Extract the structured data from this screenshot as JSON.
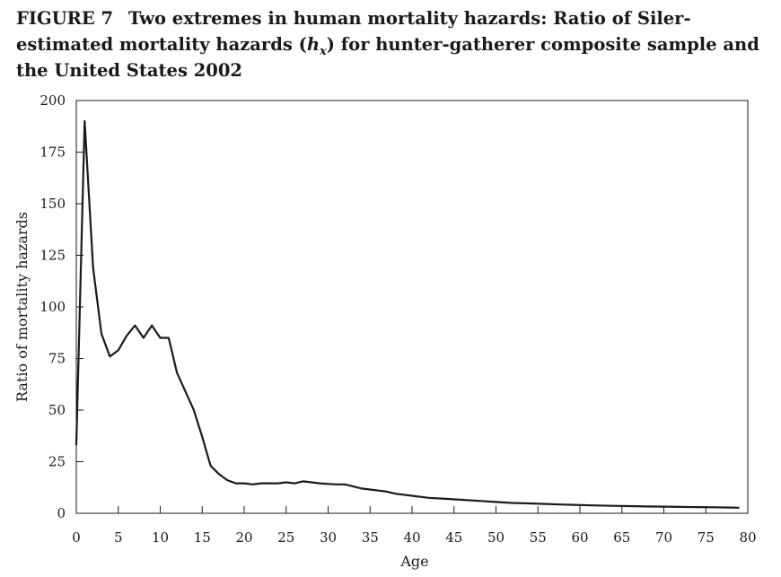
{
  "figure": {
    "label": "FIGURE 7",
    "title_part1": "Two extremes in human mortality hazards: Ratio of Siler-estimated mortality hazards (",
    "title_var": "h",
    "title_sub": "x",
    "title_part2": ") for hunter-gatherer composite sample and the United States 2002"
  },
  "chart_data": {
    "type": "line",
    "xlabel": "Age",
    "ylabel": "Ratio of mortality hazards",
    "xlim": [
      0,
      80
    ],
    "ylim": [
      0,
      200
    ],
    "x_ticks": [
      0,
      5,
      10,
      15,
      20,
      25,
      30,
      35,
      40,
      45,
      50,
      55,
      60,
      65,
      70,
      75,
      80
    ],
    "y_ticks": [
      0,
      25,
      50,
      75,
      100,
      125,
      150,
      175,
      200
    ],
    "grid": false,
    "series": [
      {
        "x": [
          0,
          1,
          2,
          3,
          4,
          5,
          6,
          7,
          8,
          9,
          10,
          11,
          12,
          13,
          14,
          15,
          16,
          17,
          18,
          19,
          20,
          21,
          22,
          23,
          24,
          25,
          26,
          27,
          28,
          29,
          30,
          31,
          32,
          33,
          34,
          35,
          36,
          37,
          38,
          39,
          40,
          42,
          44,
          46,
          48,
          50,
          52,
          54,
          56,
          58,
          60,
          62,
          64,
          66,
          68,
          70,
          72,
          74,
          76,
          78,
          79
        ],
        "values": [
          33,
          190,
          119,
          87,
          76,
          79,
          86,
          91,
          85,
          91,
          85,
          85,
          68,
          59,
          50,
          37,
          23,
          19,
          16,
          14.5,
          14.5,
          14,
          14.5,
          14.5,
          14.5,
          15,
          14.5,
          15.5,
          15,
          14.5,
          14.2,
          14,
          14,
          13,
          12,
          11.5,
          11,
          10.5,
          9.5,
          9,
          8.5,
          7.5,
          7,
          6.5,
          6,
          5.5,
          5,
          4.8,
          4.5,
          4.2,
          4,
          3.8,
          3.6,
          3.5,
          3.3,
          3.2,
          3.1,
          3,
          2.9,
          2.8,
          2.7
        ]
      }
    ]
  }
}
